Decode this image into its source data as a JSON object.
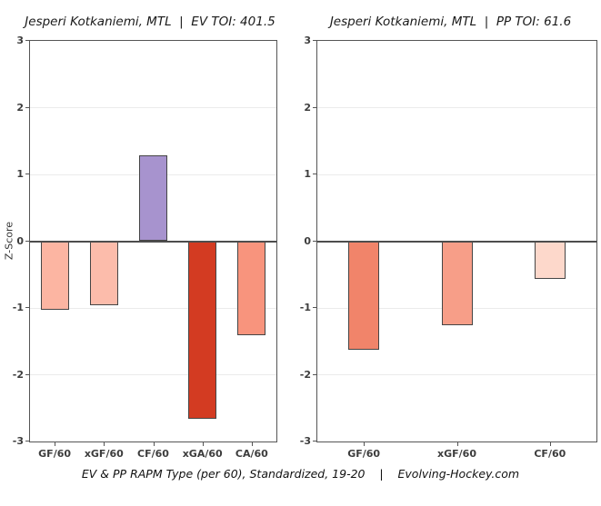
{
  "caption": "EV & PP RAPM Type (per 60), Standardized, 19-20    |    Evolving-Hockey.com",
  "colors": {
    "background": "#ffffff",
    "panel_border": "#555555",
    "zero_line": "#4d4d4d",
    "gridline": "#ebebeb",
    "bar_border": "#454545",
    "tick_text": "#3d3d3d",
    "title_text": "#1a1a1a"
  },
  "chart_data": [
    {
      "type": "bar",
      "title": "Jesperi Kotkaniemi, MTL  |  EV TOI: 401.5",
      "ylabel": "Z-Score",
      "xlabel": "",
      "ylim": [
        -3,
        3
      ],
      "ytick_step": 1,
      "grid": true,
      "legend": "none",
      "categories": [
        "GF/60",
        "xGF/60",
        "CF/60",
        "xGA/60",
        "CA/60"
      ],
      "values": [
        -1.03,
        -0.96,
        1.28,
        -2.66,
        -1.41
      ],
      "bar_colors": [
        "#fcb5a2",
        "#fcbcab",
        "#a793ce",
        "#d33b22",
        "#f8947d"
      ]
    },
    {
      "type": "bar",
      "title": "Jesperi Kotkaniemi, MTL  |  PP TOI: 61.6",
      "ylabel": "",
      "xlabel": "",
      "ylim": [
        -3,
        3
      ],
      "ytick_step": 1,
      "grid": true,
      "legend": "none",
      "categories": [
        "GF/60",
        "xGF/60",
        "CF/60"
      ],
      "values": [
        -1.63,
        -1.26,
        -0.56
      ],
      "bar_colors": [
        "#f1846a",
        "#f79e88",
        "#fdd8cb"
      ]
    }
  ]
}
